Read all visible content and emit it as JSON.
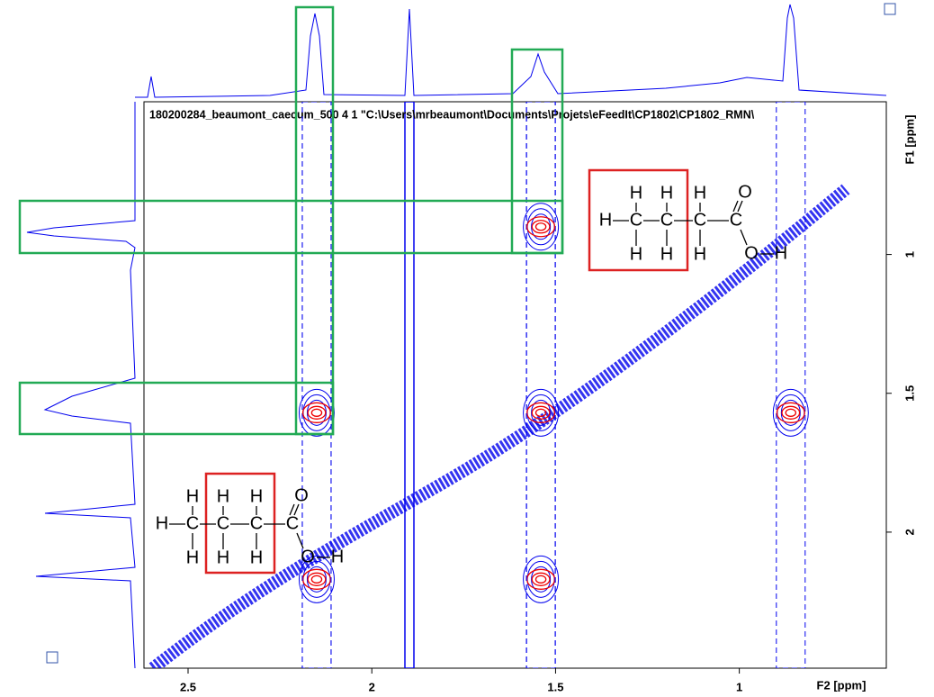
{
  "chart_data": {
    "type": "contour",
    "title": "180200284_beaumont_caecum_500 4 1 \"C:\\Users\\mrbeaumont\\Documents\\Projets\\eFeedIt\\CP1802\\CP1802_RMN\\",
    "xlabel": "F2 [ppm]",
    "ylabel": "F1 [ppm]",
    "xlim": [
      2.62,
      0.6
    ],
    "ylim": [
      0.45,
      2.49
    ],
    "xticks": [
      2.5,
      2.0,
      1.5,
      1.0
    ],
    "yticks": [
      1.0,
      1.5,
      2.0
    ],
    "peaks": [
      {
        "x": 2.15,
        "y": 2.17
      },
      {
        "x": 2.15,
        "y": 1.57
      },
      {
        "x": 1.54,
        "y": 2.17
      },
      {
        "x": 1.54,
        "y": 1.57
      },
      {
        "x": 1.54,
        "y": 0.9
      },
      {
        "x": 0.86,
        "y": 1.57
      }
    ],
    "contour_color": "#0000ee",
    "core_color": "#ee0000",
    "molecule_atoms": [
      "H",
      "C",
      "C",
      "C",
      "C",
      "H",
      "H",
      "H",
      "H",
      "H",
      "H",
      "O",
      "O",
      "H"
    ]
  }
}
